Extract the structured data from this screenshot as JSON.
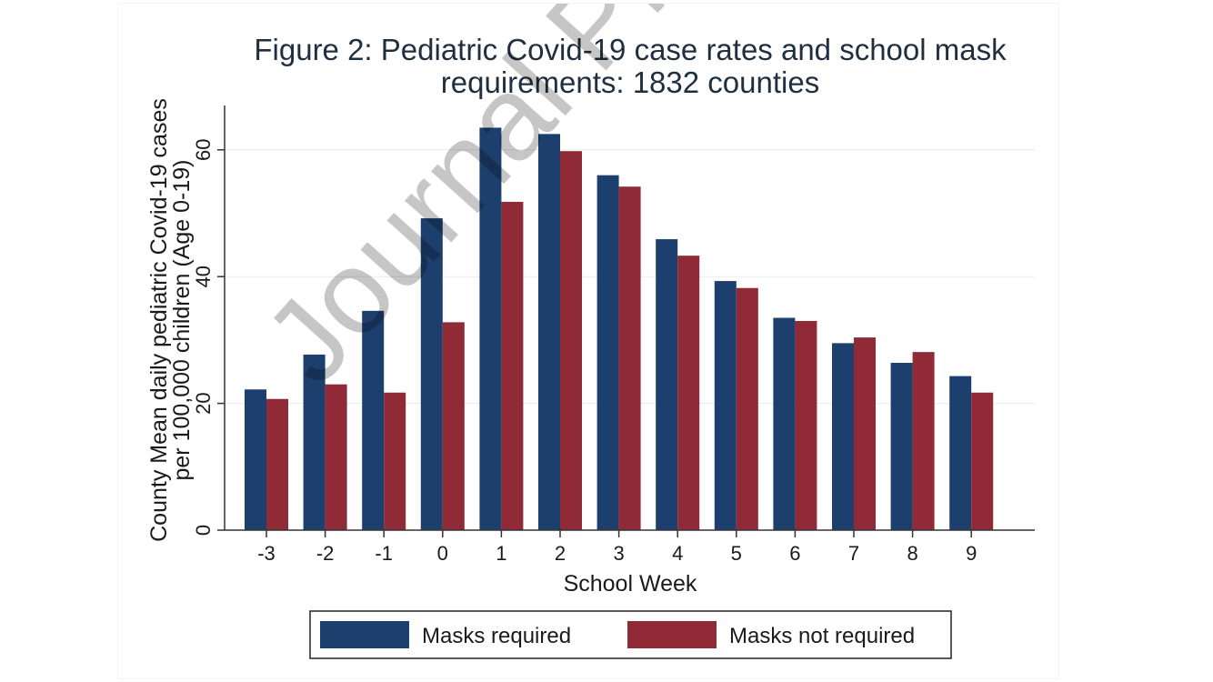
{
  "watermark": "Journal Pre-proof",
  "chart_data": {
    "type": "bar",
    "title": "Figure 2: Pediatric Covid-19 case rates and school mask requirements: 1832 counties",
    "title_lines": [
      "Figure 2: Pediatric Covid-19 case rates and school mask",
      "requirements: 1832 counties"
    ],
    "xlabel": "School Week",
    "ylabel": "County Mean daily pediatric Covid-19 cases per 100,000 children (Age 0-19)",
    "ylabel_lines": [
      "County Mean daily pediatric Covid-19 cases",
      "per 100,000 children (Age 0-19)"
    ],
    "categories": [
      "-3",
      "-2",
      "-1",
      "0",
      "1",
      "2",
      "3",
      "4",
      "5",
      "6",
      "7",
      "8",
      "9"
    ],
    "series": [
      {
        "name": "Masks required",
        "color": "#1d3f6e",
        "values": [
          22.2,
          27.7,
          34.6,
          49.2,
          63.5,
          62.5,
          56.0,
          45.9,
          39.3,
          33.5,
          29.5,
          26.4,
          24.3
        ]
      },
      {
        "name": "Masks not required",
        "color": "#8f2a36",
        "values": [
          20.7,
          23.0,
          21.7,
          32.8,
          51.8,
          59.8,
          54.2,
          43.3,
          38.2,
          33.0,
          30.4,
          28.1,
          21.7
        ]
      }
    ],
    "ylim": [
      0,
      67
    ],
    "yticks": [
      0,
      20,
      40,
      60
    ],
    "grid": true,
    "legend_position": "bottom"
  }
}
